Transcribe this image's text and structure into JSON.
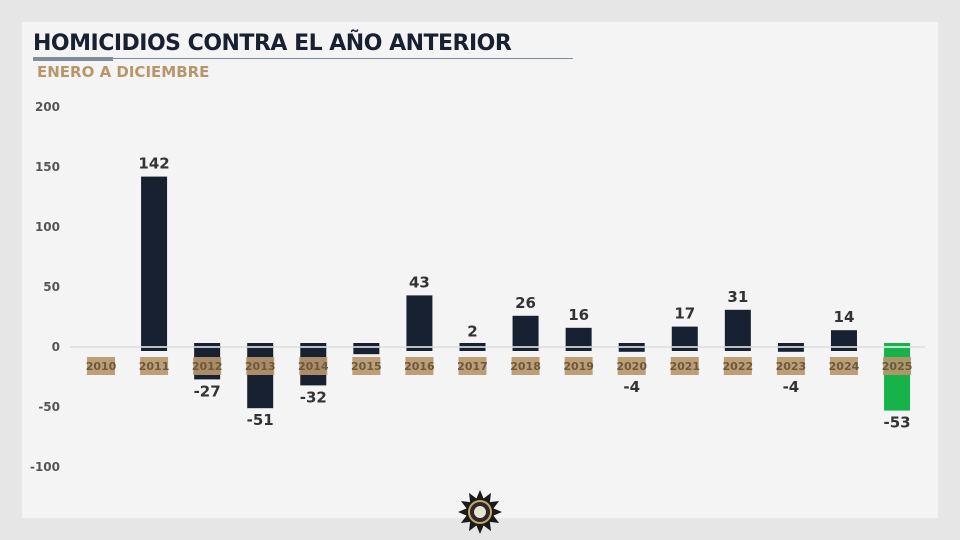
{
  "header": {
    "title": "HOMICIDIOS CONTRA EL AÑO ANTERIOR",
    "subtitle": "ENERO A DICIEMBRE"
  },
  "logo": {
    "icon": "star-badge-seal"
  },
  "chart_data": {
    "type": "bar",
    "title": "HOMICIDIOS CONTRA EL AÑO ANTERIOR",
    "subtitle": "ENERO A DICIEMBRE",
    "categories": [
      "2010",
      "2011",
      "2012",
      "2013",
      "2014",
      "2015",
      "2016",
      "2017",
      "2018",
      "2019",
      "2020",
      "2021",
      "2022",
      "2023",
      "2024",
      "2025"
    ],
    "values": [
      null,
      142,
      -27,
      -51,
      -32,
      -6,
      43,
      2,
      26,
      16,
      -4,
      17,
      31,
      -4,
      14,
      -53
    ],
    "labels": [
      "",
      "142",
      "-27",
      "-51",
      "-32",
      "",
      "43",
      "2",
      "26",
      "16",
      "-4",
      "17",
      "31",
      "-4",
      "14",
      "-53"
    ],
    "yticks": [
      200,
      150,
      100,
      50,
      0,
      -50,
      -100
    ],
    "ylim": [
      -100,
      200
    ],
    "grid": false,
    "colors": {
      "bar": "#172132",
      "highlight": "#16b34a",
      "category_label_bg": "#b8966a",
      "zero_line": "#cfcfcf"
    },
    "highlight_category": "2025"
  }
}
